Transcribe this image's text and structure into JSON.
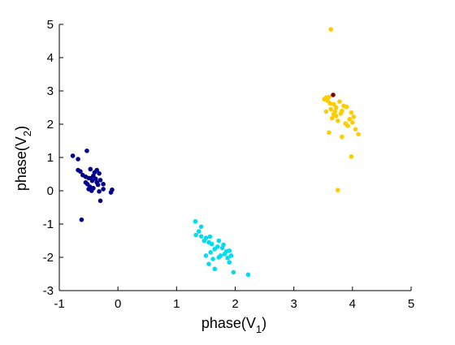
{
  "chart_data": {
    "type": "scatter",
    "title": "",
    "xlabel": {
      "base": "phase(V",
      "subscript": "1",
      "close": ")"
    },
    "ylabel": {
      "base": "phase(V",
      "subscript": "2",
      "close": ")"
    },
    "xlim": [
      -1,
      5
    ],
    "ylim": [
      -3,
      5
    ],
    "xticks": [
      "-1",
      "0",
      "1",
      "2",
      "3",
      "4",
      "5"
    ],
    "yticks": [
      "-3",
      "-2",
      "-1",
      "0",
      "1",
      "2",
      "3",
      "4",
      "5"
    ],
    "grid": false,
    "legend": "none",
    "series": [
      {
        "color": "#00008b",
        "points": [
          [
            -0.77,
            1.05
          ],
          [
            -0.68,
            0.95
          ],
          [
            -0.53,
            1.2
          ],
          [
            -0.68,
            0.62
          ],
          [
            -0.64,
            0.58
          ],
          [
            -0.6,
            0.47
          ],
          [
            -0.55,
            0.42
          ],
          [
            -0.47,
            0.65
          ],
          [
            -0.36,
            0.62
          ],
          [
            -0.4,
            0.55
          ],
          [
            -0.32,
            0.52
          ],
          [
            -0.42,
            0.45
          ],
          [
            -0.5,
            0.38
          ],
          [
            -0.38,
            0.36
          ],
          [
            -0.44,
            0.3
          ],
          [
            -0.3,
            0.32
          ],
          [
            -0.36,
            0.25
          ],
          [
            -0.55,
            0.25
          ],
          [
            -0.52,
            0.2
          ],
          [
            -0.48,
            0.12
          ],
          [
            -0.34,
            0.18
          ],
          [
            -0.25,
            0.2
          ],
          [
            -0.42,
            0.08
          ],
          [
            -0.5,
            0.05
          ],
          [
            -0.45,
            0.0
          ],
          [
            -0.32,
            -0.02
          ],
          [
            -0.25,
            0.05
          ],
          [
            -0.1,
            0.03
          ],
          [
            -0.12,
            -0.05
          ],
          [
            -0.3,
            -0.3
          ],
          [
            -0.62,
            -0.87
          ],
          [
            -0.46,
            0.38
          ]
        ]
      },
      {
        "color": "#00ddee",
        "points": [
          [
            1.32,
            -0.92
          ],
          [
            1.42,
            -1.08
          ],
          [
            1.38,
            -1.22
          ],
          [
            1.33,
            -1.33
          ],
          [
            1.42,
            -1.37
          ],
          [
            1.5,
            -1.42
          ],
          [
            1.57,
            -1.38
          ],
          [
            1.47,
            -1.5
          ],
          [
            1.55,
            -1.55
          ],
          [
            1.6,
            -1.6
          ],
          [
            1.72,
            -1.5
          ],
          [
            1.78,
            -1.72
          ],
          [
            1.8,
            -1.62
          ],
          [
            1.7,
            -1.68
          ],
          [
            1.85,
            -1.82
          ],
          [
            1.82,
            -1.9
          ],
          [
            1.9,
            -1.8
          ],
          [
            1.93,
            -1.95
          ],
          [
            1.75,
            -1.95
          ],
          [
            1.65,
            -1.75
          ],
          [
            1.58,
            -1.85
          ],
          [
            1.5,
            -1.95
          ],
          [
            1.62,
            -2.05
          ],
          [
            1.72,
            -2.0
          ],
          [
            1.9,
            -2.15
          ],
          [
            1.55,
            -2.2
          ],
          [
            1.65,
            -2.35
          ],
          [
            1.97,
            -2.45
          ],
          [
            2.22,
            -2.52
          ],
          [
            1.87,
            -2.02
          ]
        ]
      },
      {
        "color": "#ffcc00",
        "points": [
          [
            3.63,
            4.85
          ],
          [
            3.55,
            2.8
          ],
          [
            3.52,
            2.75
          ],
          [
            3.6,
            2.82
          ],
          [
            3.58,
            2.7
          ],
          [
            3.68,
            2.6
          ],
          [
            3.72,
            2.5
          ],
          [
            3.78,
            2.68
          ],
          [
            3.85,
            2.55
          ],
          [
            3.63,
            2.45
          ],
          [
            3.7,
            2.38
          ],
          [
            3.55,
            2.38
          ],
          [
            3.8,
            2.32
          ],
          [
            3.72,
            2.25
          ],
          [
            3.9,
            2.52
          ],
          [
            3.82,
            2.4
          ],
          [
            3.98,
            2.35
          ],
          [
            4.02,
            2.22
          ],
          [
            3.95,
            2.15
          ],
          [
            3.65,
            2.18
          ],
          [
            3.75,
            2.1
          ],
          [
            3.88,
            2.02
          ],
          [
            4.0,
            2.05
          ],
          [
            3.92,
            1.95
          ],
          [
            4.05,
            1.85
          ],
          [
            3.6,
            1.75
          ],
          [
            3.82,
            1.62
          ],
          [
            4.1,
            1.7
          ],
          [
            3.98,
            1.03
          ],
          [
            3.75,
            0.02
          ],
          [
            3.68,
            2.3
          ],
          [
            3.62,
            2.62
          ]
        ]
      },
      {
        "color": "#800000",
        "points": [
          [
            3.67,
            2.88
          ]
        ]
      }
    ]
  }
}
